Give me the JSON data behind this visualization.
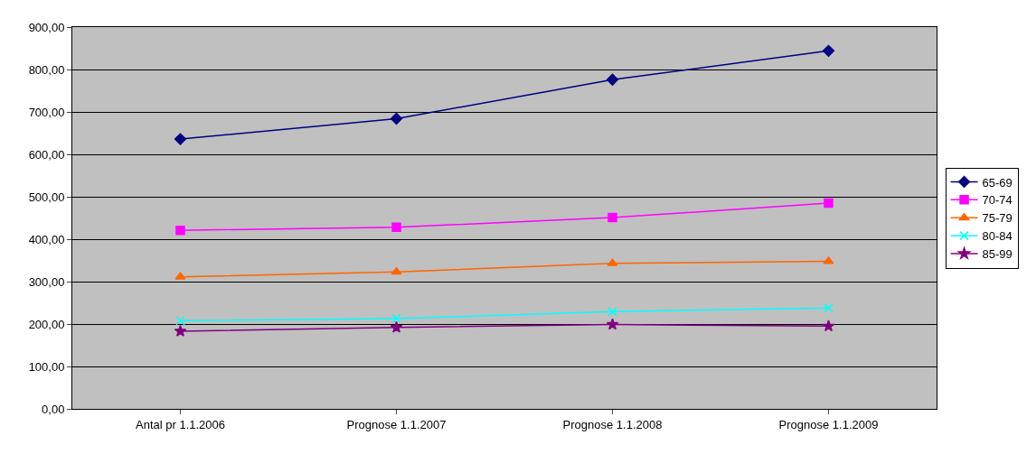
{
  "chart_data": {
    "type": "line",
    "categories": [
      "Antal pr 1.1.2006",
      "Prognose 1.1.2007",
      "Prognose 1.1.2008",
      "Prognose 1.1.2009"
    ],
    "series": [
      {
        "name": "65-69",
        "color": "#000080",
        "marker": "diamond",
        "values": [
          636,
          684,
          776,
          844
        ]
      },
      {
        "name": "70-74",
        "color": "#ff00ff",
        "marker": "square",
        "values": [
          421,
          428,
          451,
          485
        ]
      },
      {
        "name": "75-79",
        "color": "#ff6600",
        "marker": "triangle",
        "values": [
          311,
          323,
          343,
          348
        ]
      },
      {
        "name": "80-84",
        "color": "#00ffff",
        "marker": "cross",
        "values": [
          208,
          213,
          229,
          238
        ]
      },
      {
        "name": "85-99",
        "color": "#800080",
        "marker": "star",
        "values": [
          183,
          192,
          199,
          195
        ]
      }
    ],
    "ylim": [
      0,
      900
    ],
    "yticks": [
      {
        "value": 0,
        "label": "0,00"
      },
      {
        "value": 100,
        "label": "100,00"
      },
      {
        "value": 200,
        "label": "200,00"
      },
      {
        "value": 300,
        "label": "300,00"
      },
      {
        "value": 400,
        "label": "400,00"
      },
      {
        "value": 500,
        "label": "500,00"
      },
      {
        "value": 600,
        "label": "600,00"
      },
      {
        "value": 700,
        "label": "700,00"
      },
      {
        "value": 800,
        "label": "800,00"
      },
      {
        "value": 900,
        "label": "900,00"
      }
    ],
    "grid": "y",
    "legend": "right",
    "line_style": "solid"
  }
}
